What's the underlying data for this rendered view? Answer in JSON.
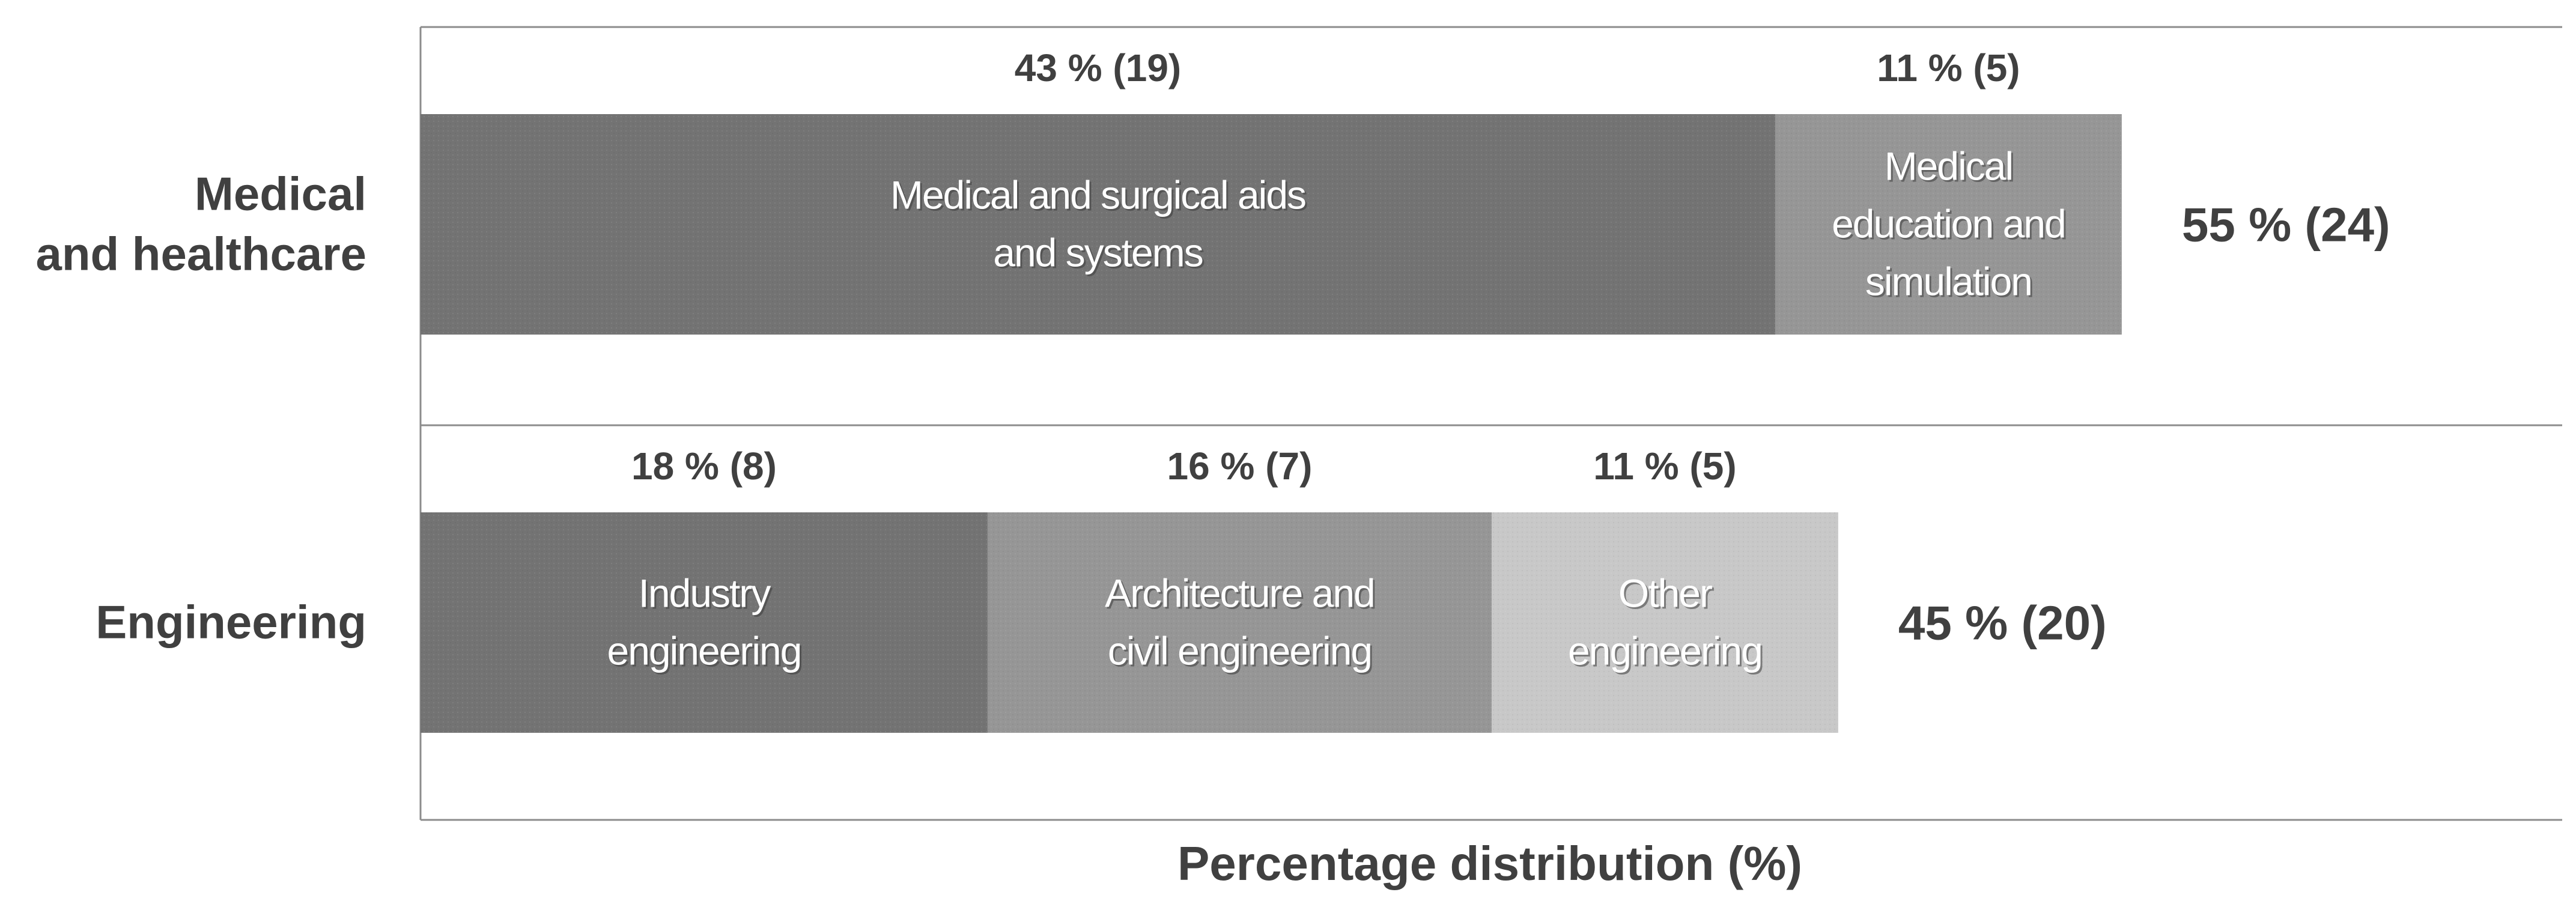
{
  "chart_data": {
    "type": "bar",
    "orientation": "horizontal",
    "stacked": true,
    "title": "",
    "xlabel": "Percentage distribution (%)",
    "ylabel": "",
    "xlim": [
      0,
      100
    ],
    "grid": false,
    "legend": "none",
    "categories": [
      {
        "name": "Medical\nand healthcare",
        "label_lines": [
          "Medical",
          "and healthcare"
        ],
        "total_label": "55 % (24)",
        "total_percent": 55,
        "total_count": 24,
        "segments": [
          {
            "name": "Medical and surgical aids and systems",
            "label_lines": [
              "Medical and surgical aids",
              "and systems"
            ],
            "percent": 43,
            "count": 19,
            "value_label": "43 % (19)",
            "color": "#737373"
          },
          {
            "name": "Medical education and simulation",
            "label_lines": [
              "Medical",
              "education and",
              "simulation"
            ],
            "percent": 11,
            "count": 5,
            "value_label": "11 % (5)",
            "color": "#969696"
          }
        ]
      },
      {
        "name": "Engineering",
        "label_lines": [
          "Engineering"
        ],
        "total_label": "45 % (20)",
        "total_percent": 45,
        "total_count": 20,
        "segments": [
          {
            "name": "Industry engineering",
            "label_lines": [
              "Industry",
              "engineering"
            ],
            "percent": 18,
            "count": 8,
            "value_label": "18 % (8)",
            "color": "#737373"
          },
          {
            "name": "Architecture and civil engineering",
            "label_lines": [
              "Architecture and",
              "civil engineering"
            ],
            "percent": 16,
            "count": 7,
            "value_label": "16 % (7)",
            "color": "#969696"
          },
          {
            "name": "Other engineering",
            "label_lines": [
              "Other",
              "engineering"
            ],
            "percent": 11,
            "count": 5,
            "value_label": "11 % (5)",
            "color": "#c8c8c8"
          }
        ]
      }
    ]
  }
}
